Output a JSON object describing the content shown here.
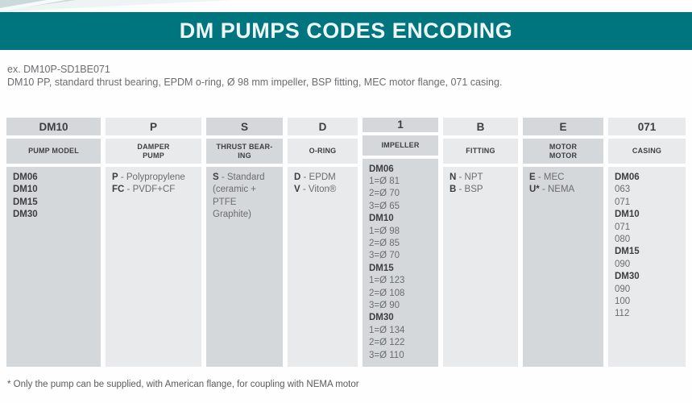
{
  "page": {
    "title": "DM PUMPS CODES ENCODING",
    "example_code": "ex. DM10P-SD1BE071",
    "example_description": "DM10 PP, standard thrust bearing, EPDM o-ring, Ø 98 mm impeller, BSP fitting, MEC motor flange, 071 casing.",
    "footnote": "* Only the pump can be supplied, with American flange, for coupling with NEMA motor"
  },
  "colors": {
    "banner_teal": "#00757E",
    "cell_dark": "#d5d8da",
    "cell_light": "#e9eaeb",
    "text_dark": "#3d3e40",
    "text_gray": "#6a6c6f"
  },
  "table": {
    "columns": [
      {
        "code": "DM10",
        "label_lines": [
          "PUMP MODEL"
        ],
        "body": [
          {
            "b": "DM06"
          },
          {
            "b": "DM10"
          },
          {
            "b": "DM15"
          },
          {
            "b": "DM30"
          }
        ]
      },
      {
        "code": "P",
        "label_lines": [
          "DAMPER",
          "PUMP"
        ],
        "body": [
          {
            "b": "P",
            "t": "- Polypropylene"
          },
          {
            "b": "FC",
            "t": "- PVDF+CF"
          }
        ]
      },
      {
        "code": "S",
        "label_lines": [
          "THRUST BEAR-",
          "ING"
        ],
        "body": [
          {
            "b": "S",
            "t": "- Standard"
          },
          {
            "t": "(ceramic +"
          },
          {
            "t": "PTFE Graphite)"
          }
        ]
      },
      {
        "code": "D",
        "label_lines": [
          "O-RING"
        ],
        "body": [
          {
            "b": "D",
            "t": "- EPDM"
          },
          {
            "b": "V",
            "t": "- Viton®"
          }
        ]
      },
      {
        "code": "1",
        "label_lines": [
          "IMPELLER"
        ],
        "body": [
          {
            "b": "DM06"
          },
          {
            "t": "1=Ø 81"
          },
          {
            "t": "2=Ø 70"
          },
          {
            "t": "3=Ø 65"
          },
          {
            "b": "DM10"
          },
          {
            "t": "1=Ø 98"
          },
          {
            "t": "2=Ø 85"
          },
          {
            "t": "3=Ø 70"
          },
          {
            "b": "DM15"
          },
          {
            "t": "1=Ø 123"
          },
          {
            "t": "2=Ø 108"
          },
          {
            "t": "3=Ø 90"
          },
          {
            "b": "DM30"
          },
          {
            "t": "1=Ø 134"
          },
          {
            "t": "2=Ø 122"
          },
          {
            "t": "3=Ø 110"
          }
        ]
      },
      {
        "code": "B",
        "label_lines": [
          "FITTING"
        ],
        "body": [
          {
            "b": "N",
            "t": "- NPT"
          },
          {
            "b": "B",
            "t": "- BSP"
          }
        ]
      },
      {
        "code": "E",
        "label_lines": [
          "MOTOR",
          "MOTOR"
        ],
        "body": [
          {
            "b": "E",
            "t": "- MEC"
          },
          {
            "b": "U*",
            "t": "- NEMA"
          }
        ]
      },
      {
        "code": "071",
        "label_lines": [
          "CASING"
        ],
        "body": [
          {
            "b": "DM06"
          },
          {
            "t": "063"
          },
          {
            "t": "071"
          },
          {
            "b": "DM10"
          },
          {
            "t": "071"
          },
          {
            "t": "080"
          },
          {
            "b": "DM15"
          },
          {
            "t": "090"
          },
          {
            "b": "DM30"
          },
          {
            "t": "090"
          },
          {
            "t": "100"
          },
          {
            "t": "112"
          }
        ]
      }
    ]
  }
}
